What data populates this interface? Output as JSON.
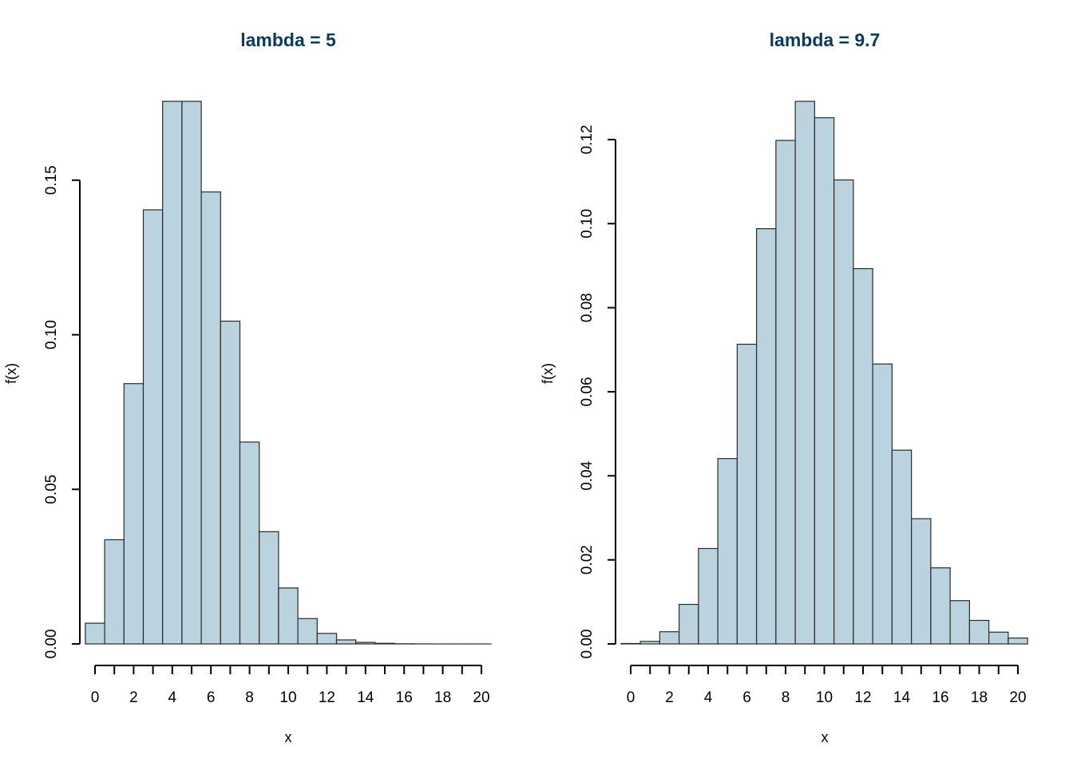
{
  "chart_data": [
    {
      "type": "bar",
      "title": "lambda = 5",
      "xlabel": "x",
      "ylabel": "f(x)",
      "x": [
        0,
        1,
        2,
        3,
        4,
        5,
        6,
        7,
        8,
        9,
        10,
        11,
        12,
        13,
        14,
        15,
        16,
        17,
        18,
        19,
        20
      ],
      "values": [
        0.0067,
        0.0337,
        0.0842,
        0.1404,
        0.1755,
        0.1755,
        0.1462,
        0.1044,
        0.0653,
        0.0363,
        0.0181,
        0.0082,
        0.0034,
        0.0013,
        0.0005,
        0.0002,
        5e-05,
        1e-05,
        0,
        0,
        0
      ],
      "xticks": [
        "0",
        "2",
        "4",
        "6",
        "8",
        "10",
        "12",
        "14",
        "16",
        "18",
        "20"
      ],
      "yticks": [
        "0.00",
        "0.05",
        "0.10",
        "0.15"
      ],
      "xlim": [
        0,
        20
      ],
      "ylim": [
        0,
        0.1755
      ],
      "bar_color": "#bbd2df",
      "grid": false
    },
    {
      "type": "bar",
      "title": "lambda = 9.7",
      "xlabel": "x",
      "ylabel": "f(x)",
      "x": [
        0,
        1,
        2,
        3,
        4,
        5,
        6,
        7,
        8,
        9,
        10,
        11,
        12,
        13,
        14,
        15,
        16,
        17,
        18,
        19,
        20
      ],
      "values": [
        0.0001,
        0.0006,
        0.0029,
        0.0094,
        0.0227,
        0.0441,
        0.0713,
        0.0988,
        0.1198,
        0.1291,
        0.1252,
        0.1104,
        0.0893,
        0.0666,
        0.0461,
        0.0298,
        0.0181,
        0.0103,
        0.0056,
        0.0028,
        0.0014
      ],
      "xticks": [
        "0",
        "2",
        "4",
        "6",
        "8",
        "10",
        "12",
        "14",
        "16",
        "18",
        "20"
      ],
      "yticks": [
        "0.00",
        "0.02",
        "0.04",
        "0.06",
        "0.08",
        "0.10",
        "0.12"
      ],
      "xlim": [
        0,
        20
      ],
      "ylim": [
        0,
        0.1291
      ],
      "bar_color": "#bbd2df",
      "grid": false
    }
  ]
}
